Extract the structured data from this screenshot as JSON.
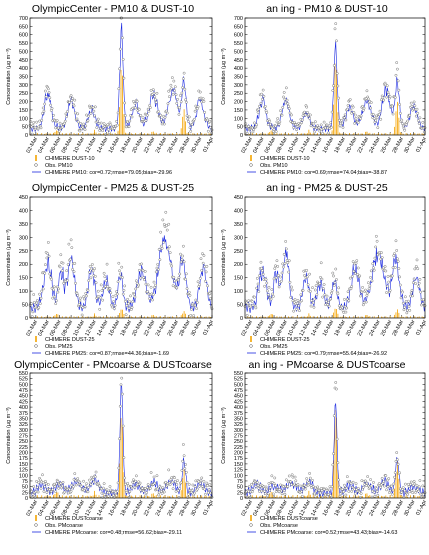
{
  "chart_data": [
    {
      "type": "line",
      "title": "OlympicCenter - PM10 & DUST-10",
      "ylabel": "Concentration (µg m⁻³)",
      "ylim": [
        0,
        700
      ],
      "yticks": [
        0,
        50,
        100,
        150,
        200,
        250,
        300,
        350,
        400,
        450,
        500,
        550,
        600,
        650,
        700
      ],
      "categories": [
        "02-Mar",
        "04-Mar",
        "06-Mar",
        "08-Mar",
        "10-Mar",
        "12-Mar",
        "14-Mar",
        "16-Mar",
        "18-Mar",
        "20-Mar",
        "22-Mar",
        "24-Mar",
        "26-Mar",
        "28-Mar",
        "30-Mar",
        "01-Apr"
      ],
      "xlim": [
        1,
        32
      ],
      "legend_entries": [
        "CHIMERE DUST-10",
        "Obs. PM10",
        "CHIMERE PM10: cor=0.72;rmse=79.05;bias=-29.96"
      ],
      "legend_placement": "bottom",
      "series_key": "pm10",
      "station": "olympic"
    },
    {
      "type": "line",
      "title": "an   ing - PM10 & DUST-10",
      "ylabel": "Concentration (µg m⁻³)",
      "ylim": [
        0,
        700
      ],
      "yticks": [
        0,
        50,
        100,
        150,
        200,
        250,
        300,
        350,
        400,
        450,
        500,
        550,
        600,
        650,
        700
      ],
      "categories": [
        "02-Mar",
        "04-Mar",
        "06-Mar",
        "08-Mar",
        "10-Mar",
        "12-Mar",
        "14-Mar",
        "16-Mar",
        "18-Mar",
        "20-Mar",
        "22-Mar",
        "24-Mar",
        "26-Mar",
        "28-Mar",
        "30-Mar",
        "01-Apr"
      ],
      "xlim": [
        1,
        32
      ],
      "legend_entries": [
        "CHIMERE DUST-10",
        "Obs. PM10",
        "CHIMERE PM10: cor=0.69;rmse=74.04;bias=-38.87"
      ],
      "legend_placement": "bottom",
      "series_key": "pm10",
      "station": "other"
    },
    {
      "type": "line",
      "title": "OlympicCenter - PM25 & DUST-25",
      "ylabel": "Concentration (µg m⁻³)",
      "ylim": [
        0,
        450
      ],
      "yticks": [
        0,
        50,
        100,
        150,
        200,
        250,
        300,
        350,
        400,
        450
      ],
      "categories": [
        "02-Mar",
        "04-Mar",
        "06-Mar",
        "08-Mar",
        "10-Mar",
        "12-Mar",
        "14-Mar",
        "16-Mar",
        "18-Mar",
        "20-Mar",
        "22-Mar",
        "24-Mar",
        "26-Mar",
        "28-Mar",
        "30-Mar",
        "01-Apr"
      ],
      "xlim": [
        1,
        32
      ],
      "legend_entries": [
        "CHIMERE DUST-25",
        "Obs. PM25",
        "CHIMERE PM25: cor=0.87;rmse=44.36;bias=-1.69"
      ],
      "legend_placement": "bottom",
      "series_key": "pm25",
      "station": "olympic"
    },
    {
      "type": "line",
      "title": "an   ing - PM25 & DUST-25",
      "ylabel": "Concentration (µg m⁻³)",
      "ylim": [
        0,
        450
      ],
      "yticks": [
        0,
        50,
        100,
        150,
        200,
        250,
        300,
        350,
        400,
        450
      ],
      "categories": [
        "02-Mar",
        "04-Mar",
        "06-Mar",
        "08-Mar",
        "10-Mar",
        "12-Mar",
        "14-Mar",
        "16-Mar",
        "18-Mar",
        "20-Mar",
        "22-Mar",
        "24-Mar",
        "26-Mar",
        "28-Mar",
        "30-Mar",
        "01-Apr"
      ],
      "xlim": [
        1,
        32
      ],
      "legend_entries": [
        "CHIMERE DUST-25",
        "Obs. PM25",
        "CHIMERE PM25: cor=0.79;rmse=55.64;bias=-26.92"
      ],
      "legend_placement": "bottom",
      "series_key": "pm25",
      "station": "other"
    },
    {
      "type": "line",
      "title": "OlympicCenter - PMcoarse & DUSTcoarse",
      "ylabel": "Concentration (µg m⁻³)",
      "ylim": [
        0,
        550
      ],
      "yticks": [
        0,
        25,
        50,
        75,
        100,
        125,
        150,
        175,
        200,
        225,
        250,
        275,
        300,
        325,
        350,
        375,
        400,
        425,
        450,
        475,
        500,
        525,
        550
      ],
      "categories": [
        "02-Mar",
        "04-Mar",
        "06-Mar",
        "08-Mar",
        "10-Mar",
        "12-Mar",
        "14-Mar",
        "16-Mar",
        "18-Mar",
        "20-Mar",
        "22-Mar",
        "24-Mar",
        "26-Mar",
        "28-Mar",
        "30-Mar",
        "01-Apr"
      ],
      "xlim": [
        1,
        32
      ],
      "legend_entries": [
        "CHIMERE DUSTcoarse",
        "Obs. PMcoarse",
        "CHIMERE PMcoarse: cor=0.48;rmse=56.62;bias=-29.11"
      ],
      "legend_placement": "bottom",
      "series_key": "pmc",
      "station": "olympic"
    },
    {
      "type": "line",
      "title": "an   ing - PMcoarse & DUSTcoarse",
      "ylabel": "Concentration (µg m⁻³)",
      "ylim": [
        0,
        550
      ],
      "yticks": [
        0,
        25,
        50,
        75,
        100,
        125,
        150,
        175,
        200,
        225,
        250,
        275,
        300,
        325,
        350,
        375,
        400,
        425,
        450,
        475,
        500,
        525,
        550
      ],
      "categories": [
        "02-Mar",
        "04-Mar",
        "06-Mar",
        "08-Mar",
        "10-Mar",
        "12-Mar",
        "14-Mar",
        "16-Mar",
        "18-Mar",
        "20-Mar",
        "22-Mar",
        "24-Mar",
        "26-Mar",
        "28-Mar",
        "30-Mar",
        "01-Apr"
      ],
      "xlim": [
        1,
        32
      ],
      "legend_entries": [
        "CHIMERE DUSTcoarse",
        "Obs. PMcoarse",
        "CHIMERE PMcoarse: cor=0.52;rmse=43.43;bias=-14.63"
      ],
      "legend_placement": "bottom",
      "series_key": "pmc",
      "station": "other"
    }
  ],
  "colors": {
    "dust": "#f4a300",
    "obs": "#555555",
    "model": "#1a28e0",
    "axis": "#000000"
  }
}
